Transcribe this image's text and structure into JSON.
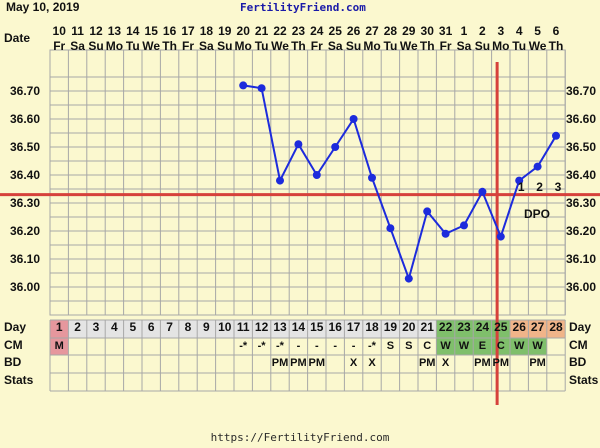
{
  "header": {
    "date_text": "May 10, 2019",
    "site_title": "FertilityFriend.com",
    "footer_url": "https://FertilityFriend.com"
  },
  "row_labels": {
    "date": "Date",
    "day": "Day",
    "cm": "CM",
    "bd": "BD",
    "stats": "Stats"
  },
  "dpo_label": "DPO",
  "colors": {
    "background": "#fbf8cf",
    "grid": "#a7a7a7",
    "line": "#1d2bdc",
    "coverline": "#d6413b",
    "menses": "#e6979d",
    "fertile": "#7fbf6b",
    "luteal": "#f0b489"
  },
  "chart_data": {
    "type": "line",
    "title": "",
    "xlabel": "Day",
    "ylabel": "",
    "ylim": [
      35.9,
      36.75
    ],
    "yticks": [
      "36.70",
      "36.60",
      "36.50",
      "36.40",
      "36.30",
      "36.20",
      "36.10",
      "36.00"
    ],
    "coverline": 36.33,
    "ovulation_day": 25,
    "grid": true,
    "dates": [
      "10",
      "11",
      "12",
      "13",
      "14",
      "15",
      "16",
      "17",
      "18",
      "19",
      "20",
      "21",
      "22",
      "23",
      "24",
      "25",
      "26",
      "27",
      "28",
      "29",
      "30",
      "31",
      "1",
      "2",
      "3",
      "4",
      "5",
      "6"
    ],
    "weekdays": [
      "Fr",
      "Sa",
      "Su",
      "Mo",
      "Tu",
      "We",
      "Th",
      "Fr",
      "Sa",
      "Su",
      "Mo",
      "Tu",
      "We",
      "Th",
      "Fr",
      "Sa",
      "Su",
      "Mo",
      "Tu",
      "We",
      "Th",
      "Fr",
      "Sa",
      "Su",
      "Mo",
      "Tu",
      "We",
      "Th"
    ],
    "cycle_days": [
      "1",
      "2",
      "3",
      "4",
      "5",
      "6",
      "7",
      "8",
      "9",
      "10",
      "11",
      "12",
      "13",
      "14",
      "15",
      "16",
      "17",
      "18",
      "19",
      "20",
      "21",
      "22",
      "23",
      "24",
      "25",
      "26",
      "27",
      "28"
    ],
    "temps": [
      null,
      null,
      null,
      null,
      null,
      null,
      null,
      null,
      null,
      null,
      36.72,
      36.71,
      36.38,
      36.51,
      36.4,
      36.5,
      36.6,
      36.39,
      36.21,
      36.03,
      36.27,
      36.19,
      36.22,
      36.34,
      36.18,
      36.38,
      36.43,
      36.54
    ],
    "dpo": [
      "",
      "",
      "",
      "",
      "",
      "",
      "",
      "",
      "",
      "",
      "",
      "",
      "",
      "",
      "",
      "",
      "",
      "",
      "",
      "",
      "",
      "",
      "",
      "",
      "",
      "1",
      "2",
      "3"
    ],
    "cm": [
      "M",
      "",
      "",
      "",
      "",
      "",
      "",
      "",
      "",
      "",
      "-*",
      "-*",
      "-*",
      "-",
      "-",
      "-",
      "-",
      "-*",
      "S",
      "S",
      "C",
      "W",
      "W",
      "E",
      "C",
      "W",
      "W",
      ""
    ],
    "bd": [
      "",
      "",
      "",
      "",
      "",
      "",
      "",
      "",
      "",
      "",
      "",
      "",
      "PM",
      "PM",
      "PM",
      "",
      "X",
      "X",
      "",
      "",
      "PM",
      "X",
      "",
      "PM",
      "PM",
      "",
      "PM",
      ""
    ],
    "stats": [
      "",
      "",
      "",
      "",
      "",
      "",
      "",
      "",
      "",
      "",
      "",
      "",
      "",
      "",
      "",
      "",
      "",
      "",
      "",
      "",
      "",
      "",
      "",
      "",
      "",
      "",
      "",
      ""
    ],
    "day_colors": [
      "menses",
      "",
      "",
      "",
      "",
      "",
      "",
      "",
      "",
      "",
      "",
      "",
      "",
      "",
      "",
      "",
      "",
      "",
      "",
      "",
      "",
      "fertile",
      "fertile",
      "fertile",
      "fertile",
      "luteal",
      "luteal",
      "luteal"
    ]
  }
}
